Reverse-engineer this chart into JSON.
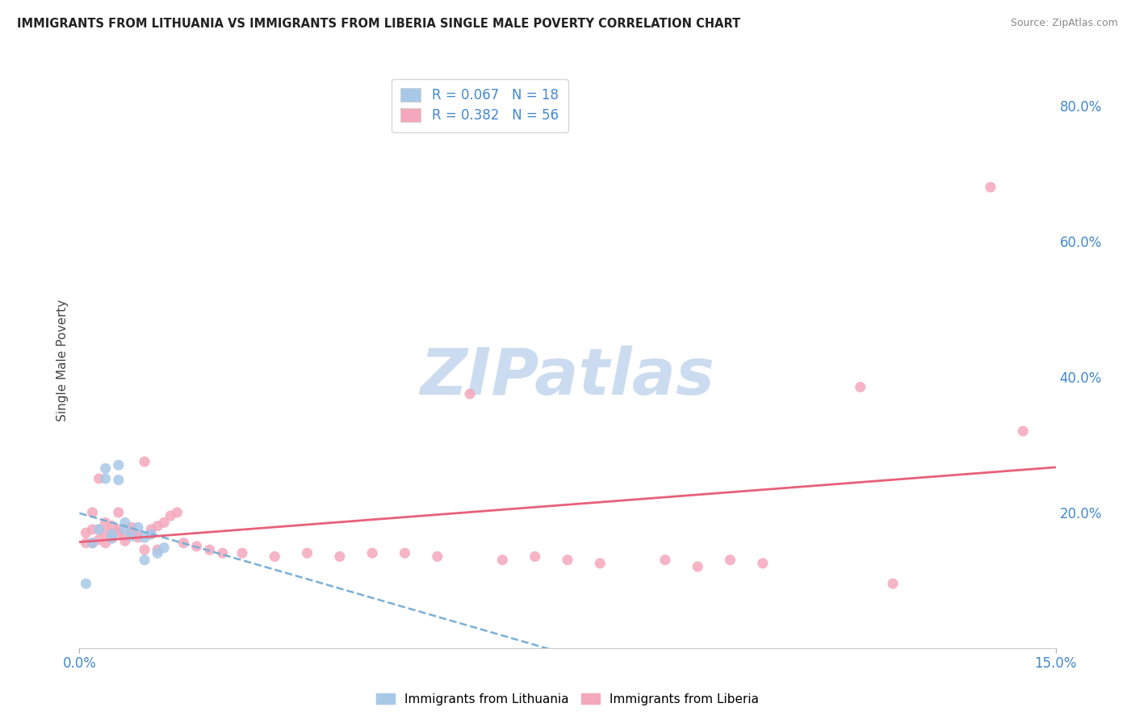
{
  "title": "IMMIGRANTS FROM LITHUANIA VS IMMIGRANTS FROM LIBERIA SINGLE MALE POVERTY CORRELATION CHART",
  "source_text": "Source: ZipAtlas.com",
  "ylabel": "Single Male Poverty",
  "xlim": [
    0.0,
    0.15
  ],
  "ylim": [
    0.0,
    0.85
  ],
  "color_lithuania": "#a8c8e8",
  "color_liberia": "#f4a8bc",
  "trend_color_lithuania": "#7ab0d8",
  "trend_color_liberia": "#e8607a",
  "legend_entry1": "R = 0.067   N = 18",
  "legend_entry2": "R = 0.382   N = 56",
  "legend_label1": "Immigrants from Lithuania",
  "legend_label2": "Immigrants from Liberia",
  "grid_color": "#d0d8e8",
  "background_color": "#ffffff",
  "axis_label_color": "#4488cc",
  "title_color": "#222222",
  "watermark_color": "#ccdcf0",
  "lith_x": [
    0.001,
    0.002,
    0.003,
    0.004,
    0.004,
    0.005,
    0.005,
    0.006,
    0.006,
    0.007,
    0.007,
    0.008,
    0.009,
    0.01,
    0.01,
    0.011,
    0.012,
    0.013
  ],
  "lith_y": [
    0.095,
    0.155,
    0.175,
    0.25,
    0.265,
    0.162,
    0.168,
    0.248,
    0.27,
    0.175,
    0.185,
    0.165,
    0.178,
    0.163,
    0.13,
    0.168,
    0.14,
    0.148
  ],
  "lib_x": [
    0.001,
    0.001,
    0.002,
    0.002,
    0.002,
    0.003,
    0.003,
    0.003,
    0.004,
    0.004,
    0.004,
    0.005,
    0.005,
    0.005,
    0.006,
    0.006,
    0.006,
    0.007,
    0.007,
    0.008,
    0.008,
    0.009,
    0.009,
    0.01,
    0.01,
    0.011,
    0.011,
    0.012,
    0.012,
    0.013,
    0.014,
    0.015,
    0.016,
    0.018,
    0.02,
    0.022,
    0.025,
    0.03,
    0.035,
    0.04,
    0.045,
    0.05,
    0.055,
    0.06,
    0.065,
    0.07,
    0.075,
    0.08,
    0.09,
    0.095,
    0.1,
    0.105,
    0.12,
    0.125,
    0.14,
    0.145
  ],
  "lib_y": [
    0.155,
    0.17,
    0.155,
    0.175,
    0.2,
    0.16,
    0.175,
    0.25,
    0.17,
    0.185,
    0.155,
    0.162,
    0.168,
    0.18,
    0.17,
    0.175,
    0.2,
    0.158,
    0.165,
    0.172,
    0.178,
    0.163,
    0.168,
    0.145,
    0.275,
    0.168,
    0.175,
    0.18,
    0.145,
    0.185,
    0.195,
    0.2,
    0.155,
    0.15,
    0.145,
    0.14,
    0.14,
    0.135,
    0.14,
    0.135,
    0.14,
    0.14,
    0.135,
    0.375,
    0.13,
    0.135,
    0.13,
    0.125,
    0.13,
    0.12,
    0.13,
    0.125,
    0.385,
    0.095,
    0.68,
    0.32
  ]
}
